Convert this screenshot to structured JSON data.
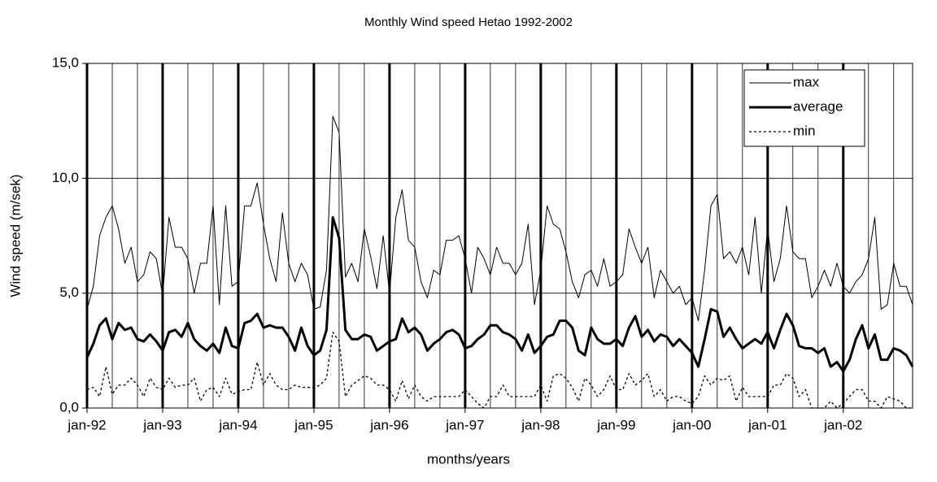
{
  "chart_data": {
    "type": "line",
    "title": "Monthly Wind speed Hetao 1992-2002",
    "x_label": "months/years",
    "y_label": "Wind speed (m/sek)",
    "categories": [
      "jan-92",
      null,
      null,
      null,
      null,
      null,
      null,
      null,
      null,
      null,
      null,
      null,
      "jan-93",
      null,
      null,
      null,
      null,
      null,
      null,
      null,
      null,
      null,
      null,
      null,
      "jan-94",
      null,
      null,
      null,
      null,
      null,
      null,
      null,
      null,
      null,
      null,
      null,
      "jan-95",
      null,
      null,
      null,
      null,
      null,
      null,
      null,
      null,
      null,
      null,
      null,
      "jan-96",
      null,
      null,
      null,
      null,
      null,
      null,
      null,
      null,
      null,
      null,
      null,
      "jan-97",
      null,
      null,
      null,
      null,
      null,
      null,
      null,
      null,
      null,
      null,
      null,
      "jan-98",
      null,
      null,
      null,
      null,
      null,
      null,
      null,
      null,
      null,
      null,
      null,
      "jan-99",
      null,
      null,
      null,
      null,
      null,
      null,
      null,
      null,
      null,
      null,
      null,
      "jan-00",
      null,
      null,
      null,
      null,
      null,
      null,
      null,
      null,
      null,
      null,
      null,
      "jan-01",
      null,
      null,
      null,
      null,
      null,
      null,
      null,
      null,
      null,
      null,
      null,
      "jan-02",
      null,
      null,
      null,
      null,
      null,
      null,
      null,
      null,
      null,
      null,
      null
    ],
    "series": [
      {
        "name": "max",
        "color": "#000000",
        "style": "thin",
        "values": [
          4.3,
          5.3,
          7.5,
          8.3,
          8.8,
          7.8,
          6.3,
          7.0,
          5.5,
          5.8,
          6.8,
          6.5,
          4.9,
          8.3,
          7.0,
          7.0,
          6.5,
          5.0,
          6.3,
          6.3,
          8.8,
          4.5,
          8.8,
          5.3,
          5.5,
          8.8,
          8.8,
          9.8,
          8.0,
          6.5,
          5.5,
          8.5,
          6.3,
          5.5,
          6.3,
          5.8,
          4.3,
          4.4,
          6.0,
          12.7,
          12.0,
          5.7,
          6.3,
          5.5,
          7.8,
          6.6,
          5.2,
          7.5,
          5.0,
          8.3,
          9.5,
          7.3,
          7.0,
          5.5,
          4.8,
          6.0,
          5.8,
          7.3,
          7.3,
          7.5,
          6.5,
          5.0,
          7.0,
          6.5,
          5.8,
          7.0,
          6.3,
          6.3,
          5.8,
          6.3,
          8.0,
          4.5,
          6.0,
          8.8,
          8.0,
          7.8,
          6.8,
          5.5,
          4.8,
          5.8,
          6.0,
          5.3,
          6.5,
          5.3,
          5.5,
          5.8,
          7.8,
          7.0,
          6.3,
          7.0,
          4.8,
          6.0,
          5.5,
          5.0,
          5.3,
          4.5,
          4.8,
          3.8,
          6.0,
          8.8,
          9.3,
          6.5,
          6.8,
          6.3,
          7.0,
          5.8,
          8.3,
          5.0,
          7.8,
          5.5,
          6.5,
          8.8,
          6.8,
          6.5,
          6.5,
          4.8,
          5.3,
          6.0,
          5.3,
          6.3,
          5.3,
          5.0,
          5.5,
          5.8,
          6.5,
          8.3,
          4.3,
          4.5,
          6.3,
          5.3,
          5.3,
          4.5
        ]
      },
      {
        "name": "average",
        "color": "#000000",
        "style": "thick",
        "values": [
          2.2,
          2.8,
          3.6,
          3.9,
          3.0,
          3.7,
          3.4,
          3.5,
          3.0,
          2.9,
          3.2,
          2.9,
          2.5,
          3.3,
          3.4,
          3.1,
          3.7,
          3.0,
          2.7,
          2.5,
          2.8,
          2.4,
          3.5,
          2.7,
          2.6,
          3.7,
          3.8,
          4.1,
          3.5,
          3.6,
          3.5,
          3.5,
          3.1,
          2.5,
          3.5,
          2.7,
          2.3,
          2.5,
          3.4,
          8.3,
          7.4,
          3.4,
          3.0,
          3.0,
          3.2,
          3.1,
          2.5,
          2.7,
          2.9,
          3.0,
          3.9,
          3.3,
          3.5,
          3.2,
          2.5,
          2.8,
          3.0,
          3.3,
          3.4,
          3.2,
          2.6,
          2.7,
          3.0,
          3.2,
          3.6,
          3.6,
          3.3,
          3.2,
          3.0,
          2.5,
          3.2,
          2.4,
          2.7,
          3.1,
          3.2,
          3.8,
          3.8,
          3.5,
          2.5,
          2.3,
          3.5,
          3.0,
          2.8,
          2.8,
          3.0,
          2.7,
          3.5,
          4.0,
          3.1,
          3.4,
          2.9,
          3.2,
          3.1,
          2.7,
          3.0,
          2.7,
          2.4,
          1.8,
          3.0,
          4.3,
          4.2,
          3.1,
          3.5,
          3.0,
          2.6,
          2.8,
          3.0,
          2.8,
          3.3,
          2.6,
          3.4,
          4.1,
          3.6,
          2.7,
          2.6,
          2.6,
          2.4,
          2.6,
          1.8,
          2.0,
          1.6,
          2.1,
          3.0,
          3.6,
          2.6,
          3.2,
          2.1,
          2.1,
          2.6,
          2.5,
          2.3,
          1.8
        ]
      },
      {
        "name": "min",
        "color": "#000000",
        "style": "dotted",
        "values": [
          0.8,
          0.9,
          0.5,
          1.8,
          0.6,
          1.0,
          1.0,
          1.3,
          1.0,
          0.5,
          1.3,
          0.9,
          0.8,
          1.3,
          0.9,
          1.0,
          1.0,
          1.3,
          0.3,
          0.8,
          0.9,
          0.5,
          1.3,
          0.6,
          0.7,
          0.8,
          0.8,
          2.0,
          1.0,
          1.5,
          1.0,
          0.8,
          0.8,
          1.0,
          0.9,
          0.9,
          0.9,
          1.0,
          1.3,
          3.3,
          2.9,
          0.5,
          1.0,
          1.2,
          1.4,
          1.3,
          1.0,
          1.0,
          0.8,
          0.3,
          1.2,
          0.4,
          1.0,
          0.5,
          0.3,
          0.5,
          0.5,
          0.5,
          0.5,
          0.5,
          0.8,
          0.5,
          0.2,
          0.0,
          0.5,
          0.5,
          1.0,
          0.5,
          0.5,
          0.5,
          0.5,
          0.5,
          1.0,
          0.3,
          1.4,
          1.5,
          1.3,
          0.9,
          0.3,
          1.3,
          1.0,
          0.5,
          0.8,
          1.4,
          0.8,
          0.8,
          1.5,
          1.0,
          1.2,
          1.5,
          0.5,
          0.8,
          0.3,
          0.5,
          0.5,
          0.3,
          0.2,
          0.5,
          1.4,
          1.0,
          1.3,
          1.2,
          1.4,
          0.3,
          0.9,
          0.5,
          0.5,
          0.5,
          0.5,
          1.0,
          1.0,
          1.5,
          1.3,
          0.5,
          0.8,
          0.0,
          0.0,
          0.0,
          0.3,
          0.0,
          0.2,
          0.5,
          0.8,
          0.8,
          0.3,
          0.3,
          0.0,
          0.5,
          0.4,
          0.3,
          0.0,
          0.0
        ]
      }
    ],
    "ylim": [
      0,
      15
    ],
    "yticks": [
      {
        "value": 0,
        "label": "0,0"
      },
      {
        "value": 5,
        "label": "5,0"
      },
      {
        "value": 10,
        "label": "10,0"
      },
      {
        "value": 15,
        "label": "15,0"
      }
    ],
    "grid": true,
    "legend": "top-right"
  }
}
